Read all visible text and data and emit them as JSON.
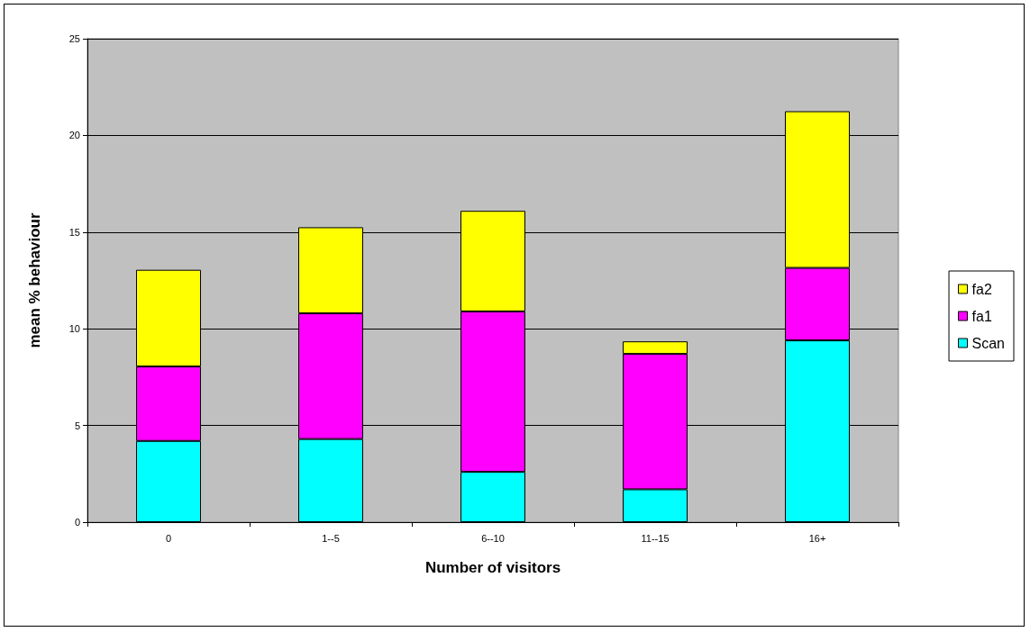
{
  "chart_data": {
    "type": "bar",
    "stacked": true,
    "xlabel": "Number of visitors",
    "ylabel": "mean % behaviour",
    "categories": [
      "0",
      "1--5",
      "6--10",
      "11--15",
      "16+"
    ],
    "series": [
      {
        "name": "Scan",
        "color": "#00ffff",
        "values": [
          4.2,
          4.3,
          2.6,
          1.7,
          9.4
        ]
      },
      {
        "name": "fa1",
        "color": "#ff00ff",
        "values": [
          3.85,
          6.5,
          8.3,
          7.0,
          3.75
        ]
      },
      {
        "name": "fa2",
        "color": "#ffff00",
        "values": [
          5.0,
          4.45,
          5.2,
          0.65,
          8.1
        ]
      }
    ],
    "ylim": [
      0,
      25
    ],
    "yticks": [
      0,
      5,
      10,
      15,
      20,
      25
    ],
    "grid": "y",
    "legend": "right"
  }
}
